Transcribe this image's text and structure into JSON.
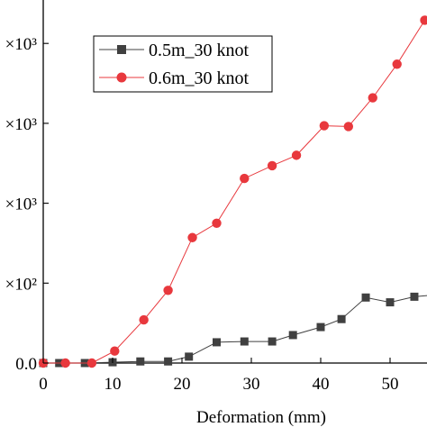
{
  "chart_data": {
    "type": "line",
    "xlabel": "Deformation (mm)",
    "ylabel": "",
    "xlim": [
      0,
      55
    ],
    "ylim": [
      0,
      5500
    ],
    "x_ticks": [
      0,
      10,
      20,
      30,
      40,
      50
    ],
    "x_tick_labels": [
      "0",
      "10",
      "20",
      "30",
      "40",
      "50"
    ],
    "y_tick_labels": [
      {
        "value": 0,
        "label": "0.0"
      },
      {
        "value": 1000,
        "label": "×10²"
      },
      {
        "value": 2000,
        "label": "×10³"
      },
      {
        "value": 3000,
        "label": "×10³"
      },
      {
        "value": 4000,
        "label": "×10³"
      },
      {
        "value": 5000,
        "label": "×10³"
      }
    ],
    "legend_position": "top-center",
    "series": [
      {
        "name": "0.5m_30 knot",
        "marker": "square",
        "color": "#404040",
        "x": [
          0,
          2.3,
          6,
          10,
          14,
          18,
          21,
          25,
          29,
          33,
          36,
          40,
          43,
          46.5,
          50,
          53.5,
          56
        ],
        "y": [
          0,
          0,
          0,
          10,
          20,
          20,
          80,
          260,
          270,
          270,
          350,
          450,
          550,
          820,
          760,
          830,
          850
        ]
      },
      {
        "name": "0.6m_30 knot",
        "marker": "circle",
        "color": "#e8383d",
        "x": [
          0,
          3.2,
          7,
          10.3,
          14.5,
          18,
          21.5,
          25,
          29,
          33,
          36.5,
          40.5,
          44,
          47.5,
          51,
          55
        ],
        "y": [
          0,
          0,
          0,
          150,
          540,
          910,
          1570,
          1750,
          2310,
          2470,
          2600,
          2970,
          2960,
          3320,
          3740,
          4290
        ]
      }
    ]
  }
}
